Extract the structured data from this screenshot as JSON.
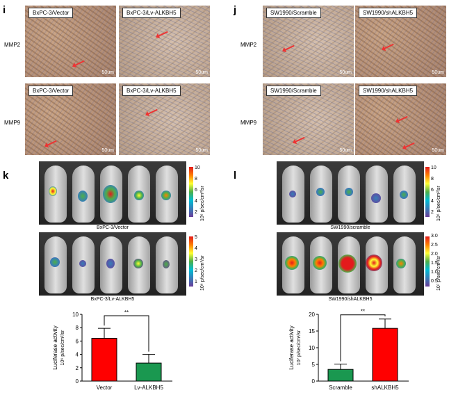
{
  "panels": {
    "i": {
      "letter": "i",
      "rows": [
        "MMP2",
        "MMP9"
      ],
      "tiles": [
        [
          "BxPC-3/Vector",
          "BxPC-3/Lv-ALKBH5"
        ],
        [
          "BxPC-3/Vector",
          "BxPC-3/Lv-ALKBH5"
        ]
      ],
      "scale": "50um"
    },
    "j": {
      "letter": "j",
      "rows": [
        "MMP2",
        "MMP9"
      ],
      "tiles": [
        [
          "SW1990/Scramble",
          "SW1990/shALKBH5"
        ],
        [
          "SW1990/Scramble",
          "SW1990/shALKBH5"
        ]
      ],
      "scale": "50um"
    },
    "k": {
      "letter": "k",
      "captions": [
        "BxPC-3/Vector",
        "BxPC-3/Lv-ALKBH5"
      ],
      "cb1": {
        "ticks": [
          "10",
          "8",
          "6",
          "4",
          "2"
        ],
        "unit": "10⁶ p/sec/cm²/sr"
      },
      "cb2": {
        "ticks": [
          "5",
          "4",
          "3",
          "2",
          "1"
        ],
        "unit": "10⁶ p/sec/cm²/sr"
      }
    },
    "l": {
      "letter": "l",
      "captions": [
        "SW1990/scramble",
        "SW1990/shALKBH5"
      ],
      "cb1": {
        "ticks": [
          "10",
          "8",
          "6",
          "4",
          "2"
        ],
        "unit": "10⁶ p/sec/cm²/sr"
      },
      "cb2": {
        "ticks": [
          "3.0",
          "2.5",
          "2.0",
          "1.5",
          "1.0",
          "0.5"
        ],
        "unit": "10⁷ p/sec/cm²/sr"
      }
    }
  },
  "chart_data": [
    {
      "type": "bar",
      "categories": [
        "Vector",
        "Lv-ALKBH5"
      ],
      "values": [
        6.4,
        2.7
      ],
      "errors": [
        1.5,
        1.3
      ],
      "ylabel": "Luciferase activity",
      "yunit": "10⁶ p/sec/cm²/sr",
      "ylim": [
        0,
        10
      ],
      "yticks": [
        0,
        2,
        4,
        6,
        8,
        10
      ],
      "colors": [
        "#ff0000",
        "#1a9850"
      ],
      "significance": "**"
    },
    {
      "type": "bar",
      "categories": [
        "Scramble",
        "shALKBH5"
      ],
      "values": [
        3.5,
        15.8
      ],
      "errors": [
        1.6,
        2.8
      ],
      "ylabel": "Luciferase activity",
      "yunit": "10⁷ p/sec/cm²/sr",
      "ylim": [
        0,
        20
      ],
      "yticks": [
        0,
        5,
        10,
        15,
        20
      ],
      "colors": [
        "#1a9850",
        "#ff0000"
      ],
      "significance": "**"
    }
  ]
}
